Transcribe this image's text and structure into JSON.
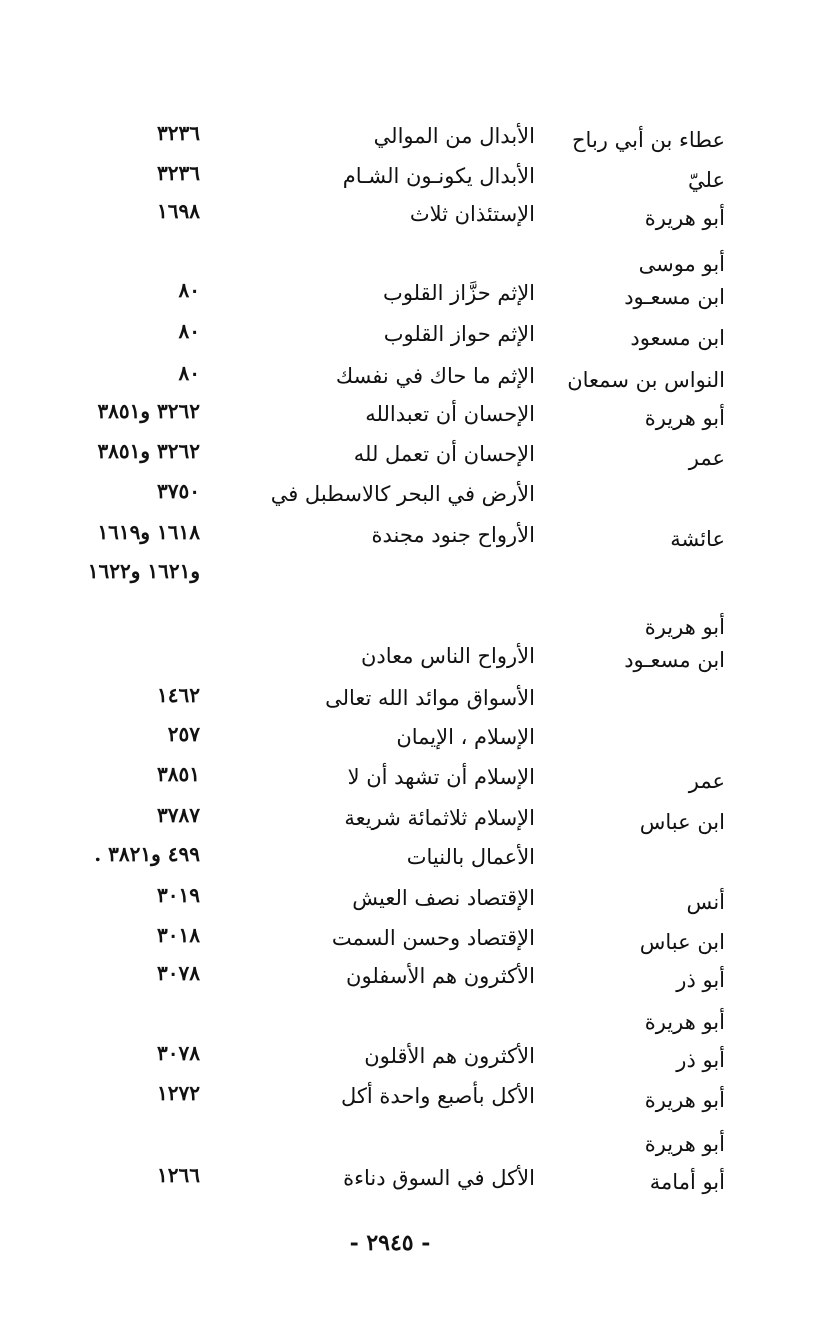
{
  "entries": [
    {
      "narrator": "عطاء بن أبي رباح",
      "text": "الأبدال من الموالي",
      "ref": "٣٢٣٦"
    },
    {
      "narrator": "عليّ",
      "text": "الأبدال يكونـون الشـام",
      "ref": "٣٢٣٦"
    },
    {
      "narrator": "أبو هريرة",
      "text": "الإستئذان ثلاث",
      "ref": "١٦٩٨"
    },
    {
      "narrator": "أبو موسى",
      "text": "",
      "ref": ""
    },
    {
      "narrator": "ابن مسعـود",
      "text": "الإثم حزَّاز القلوب",
      "ref": "٨٠"
    },
    {
      "narrator": "ابن مسعود",
      "text": "الإثم حواز القلوب",
      "ref": "٨٠"
    },
    {
      "narrator": "النواس بن سمعان",
      "text": "الإثم ما حاك في نفسك",
      "ref": "٨٠"
    },
    {
      "narrator": "أبو هريرة",
      "text": "الإحسان أن تعبدالله",
      "ref": "٣٢٦٢ و٣٨٥١"
    },
    {
      "narrator": "عمر",
      "text": "الإحسان أن تعمل لله",
      "ref": "٣٢٦٢ و٣٨٥١"
    },
    {
      "narrator": "",
      "text": "الأرض في البحر كالاسطبل في",
      "ref": "٣٧٥٠"
    },
    {
      "narrator": "عائشة",
      "text": "الأرواح جنود مجندة",
      "ref": "١٦١٨ و١٦١٩"
    },
    {
      "narrator": "",
      "text": "",
      "ref": "و١٦٢١ و١٦٢٢"
    },
    {
      "narrator": "أبو هريرة",
      "text": "",
      "ref": ""
    },
    {
      "narrator": "ابن مسعـود",
      "text": "الأرواح الناس معادن",
      "ref": ""
    },
    {
      "narrator": "",
      "text": "الأسواق موائد الله تعالى",
      "ref": "١٤٦٢"
    },
    {
      "narrator": "",
      "text": "الإسلام ، الإيمان",
      "ref": "٢٥٧"
    },
    {
      "narrator": "عمر",
      "text": "الإسلام أن تشهد أن لا",
      "ref": "٣٨٥١"
    },
    {
      "narrator": "ابن عباس",
      "text": "الإسلام ثلاثمائة شريعة",
      "ref": "٣٧٨٧"
    },
    {
      "narrator": "",
      "text": "الأعمال بالنيات",
      "ref": "٤٩٩ و٣٨٢١ ."
    },
    {
      "narrator": "أنس",
      "text": "الإقتصاد نصف العيش",
      "ref": "٣٠١٩"
    },
    {
      "narrator": "ابن عباس",
      "text": "الإقتصاد وحسن السمت",
      "ref": "٣٠١٨"
    },
    {
      "narrator": "أبو ذر",
      "text": "الأكثرون هم الأسفلون",
      "ref": "٣٠٧٨"
    },
    {
      "narrator": "أبو هريرة",
      "text": "",
      "ref": ""
    },
    {
      "narrator": "أبو ذر",
      "text": "الأكثرون هم الأقلون",
      "ref": "٣٠٧٨"
    },
    {
      "narrator": "أبو هريرة",
      "text": "الأكل بأصبع واحدة أكل",
      "ref": "١٢٧٢"
    },
    {
      "narrator": "أبو هريرة",
      "text": "",
      "ref": ""
    },
    {
      "narrator": "أبو أمامة",
      "text": "الأكل في السوق دناءة",
      "ref": "١٢٦٦"
    }
  ],
  "page_number": "- ٢٩٤٥ -"
}
